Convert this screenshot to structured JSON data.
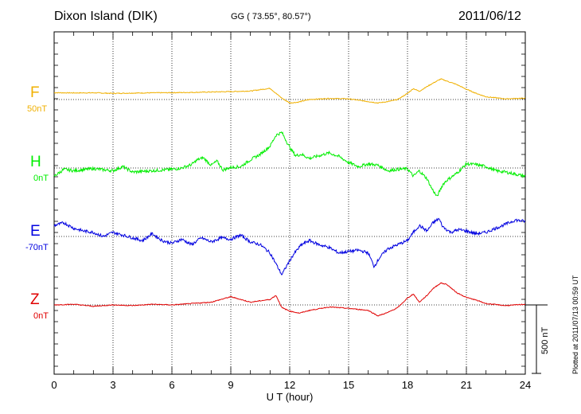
{
  "header": {
    "station": "Dixon Island (DIK)",
    "coords": "GG ( 73.55°,  80.57°)",
    "date": "2011/06/12"
  },
  "footer": {
    "plotted": "Plotted at 2011/07/13 00:59 UT",
    "scale": "500 nT"
  },
  "chart_data": {
    "type": "line",
    "xlabel": "U T (hour)",
    "xlim": [
      0,
      24
    ],
    "x_ticks": [
      0,
      3,
      6,
      9,
      12,
      15,
      18,
      21,
      24
    ],
    "grid": true,
    "scale_bar_nT": 500,
    "series": [
      {
        "name": "F",
        "baseline_label": "50nT",
        "color": "#f0b000",
        "x": [
          0,
          1,
          2,
          3,
          4,
          5,
          6,
          7,
          8,
          9,
          10,
          11,
          11.3,
          11.6,
          12,
          12.4,
          13,
          14,
          15,
          16,
          16.5,
          17,
          17.5,
          18,
          18.3,
          18.6,
          19,
          19.3,
          19.7,
          20,
          20.5,
          21,
          21.5,
          22,
          23,
          24
        ],
        "y": [
          50,
          48,
          49,
          45,
          47,
          49,
          50,
          52,
          55,
          58,
          62,
          82,
          45,
          10,
          -25,
          -20,
          0,
          8,
          5,
          -15,
          -25,
          -15,
          0,
          45,
          80,
          60,
          95,
          120,
          150,
          135,
          110,
          75,
          45,
          20,
          5,
          10
        ]
      },
      {
        "name": "H",
        "baseline_label": "0nT",
        "color": "#00ee00",
        "x": [
          0,
          0.5,
          1,
          2,
          3,
          3.5,
          4,
          5,
          6,
          6.5,
          7,
          7.3,
          7.6,
          8,
          8.3,
          8.6,
          9,
          9.5,
          10,
          10.5,
          11,
          11.3,
          11.6,
          12,
          12.3,
          12.6,
          13,
          13.5,
          14,
          14.5,
          15,
          15.5,
          16,
          16.5,
          17,
          17.5,
          18,
          18.3,
          18.6,
          19,
          19.2,
          19.5,
          19.8,
          20,
          20.5,
          21,
          21.5,
          22,
          22.5,
          23,
          24
        ],
        "y": [
          -60,
          -10,
          -20,
          -5,
          -20,
          10,
          -30,
          -20,
          -10,
          0,
          25,
          60,
          75,
          20,
          50,
          -15,
          5,
          10,
          60,
          100,
          160,
          240,
          260,
          150,
          90,
          100,
          70,
          90,
          110,
          85,
          40,
          10,
          30,
          20,
          -20,
          -10,
          -5,
          -60,
          -20,
          -80,
          -140,
          -210,
          -120,
          -90,
          -40,
          30,
          25,
          10,
          -20,
          -30,
          -60
        ]
      },
      {
        "name": "E",
        "baseline_label": "-70nT",
        "color": "#0000e0",
        "x": [
          0,
          0.5,
          1,
          1.5,
          2,
          2.5,
          3,
          3.5,
          4,
          4.5,
          5,
          5.5,
          6,
          6.5,
          7,
          7.5,
          8,
          8.5,
          9,
          9.5,
          10,
          10.5,
          11,
          11.3,
          11.6,
          11.9,
          12.2,
          12.6,
          13,
          13.5,
          14,
          14.5,
          15,
          15.5,
          16,
          16.3,
          16.6,
          17,
          17.5,
          18,
          18.3,
          18.6,
          19,
          19.3,
          19.6,
          19.8,
          20.2,
          20.6,
          21,
          21.5,
          22,
          22.5,
          23,
          23.5,
          24
        ],
        "y": [
          80,
          100,
          60,
          40,
          30,
          0,
          30,
          10,
          -10,
          -30,
          20,
          -30,
          -50,
          -20,
          -60,
          -10,
          -40,
          -10,
          -20,
          10,
          -40,
          -60,
          -120,
          -200,
          -280,
          -200,
          -130,
          -60,
          -30,
          -60,
          -80,
          -120,
          -110,
          -100,
          -120,
          -220,
          -150,
          -90,
          -60,
          -30,
          30,
          80,
          40,
          100,
          130,
          70,
          30,
          50,
          40,
          20,
          30,
          60,
          90,
          120,
          110
        ]
      },
      {
        "name": "Z",
        "baseline_label": "0nT",
        "color": "#e00000",
        "x": [
          0,
          1,
          2,
          3,
          4,
          5,
          6,
          7,
          8,
          9,
          10,
          11,
          11.3,
          11.6,
          12,
          12.5,
          13,
          14,
          15,
          16,
          16.5,
          17,
          17.5,
          18,
          18.3,
          18.6,
          19,
          19.3,
          19.7,
          20,
          20.5,
          21,
          21.5,
          22,
          23,
          24
        ],
        "y": [
          0,
          5,
          -10,
          0,
          -5,
          5,
          0,
          10,
          20,
          60,
          20,
          40,
          70,
          -20,
          -45,
          -60,
          -40,
          -15,
          -25,
          -40,
          -80,
          -55,
          -20,
          50,
          80,
          20,
          70,
          120,
          160,
          150,
          90,
          55,
          35,
          10,
          -5,
          5
        ]
      }
    ]
  }
}
